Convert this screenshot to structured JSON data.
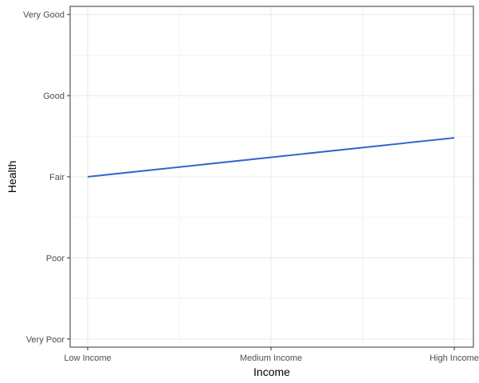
{
  "chart_data": {
    "type": "line",
    "title": "",
    "xlabel": "Income",
    "ylabel": "Health",
    "x_categories": [
      "Low Income",
      "Medium Income",
      "High Income"
    ],
    "y_categories": [
      "Very Poor",
      "Poor",
      "Fair",
      "Good",
      "Very Good"
    ],
    "ylim": [
      0.9,
      5.1
    ],
    "grid": true,
    "legend": "none",
    "series": [
      {
        "x": [
          "Low Income",
          "High Income"
        ],
        "y": [
          3.0,
          3.48
        ]
      }
    ],
    "colors": {
      "line": "#3366cc",
      "grid": "#ebebeb",
      "panel_border": "#333333",
      "tick_label": "#4d4d4d"
    }
  }
}
